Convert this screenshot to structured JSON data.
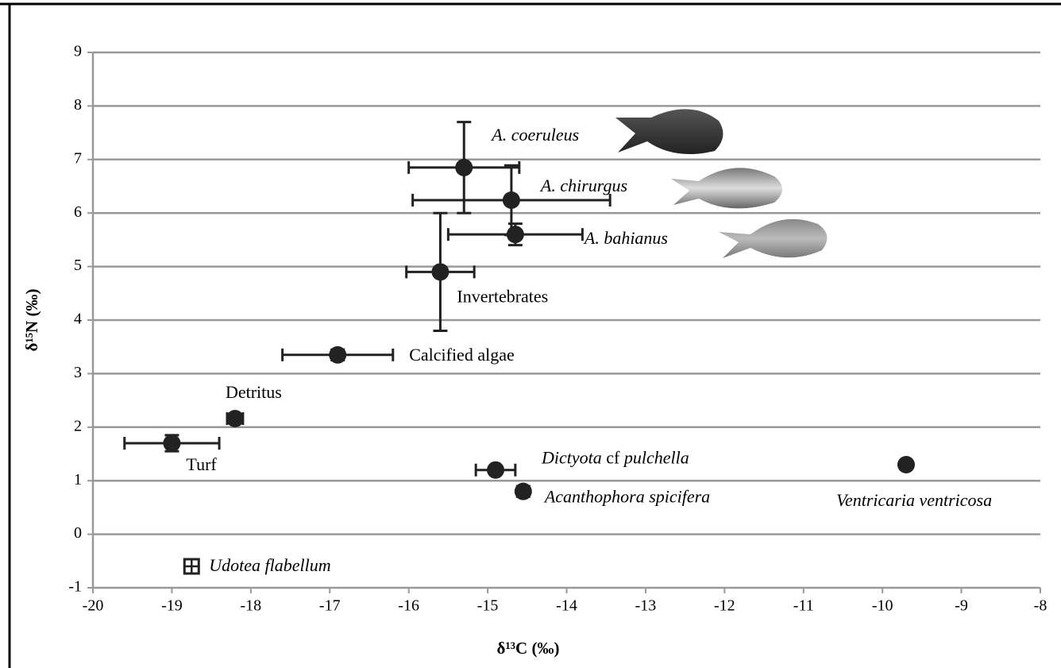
{
  "chart_data": {
    "type": "scatter",
    "x_label": "δ¹³C (‰)",
    "y_label": "δ¹⁵N (‰)",
    "xlim": [
      -20,
      -8
    ],
    "xticks": [
      -20,
      -19,
      -18,
      -17,
      -16,
      -15,
      -14,
      -13,
      -12,
      -11,
      -10,
      -9,
      -8
    ],
    "ylim": [
      -1,
      9
    ],
    "yticks": [
      -1,
      0,
      1,
      2,
      3,
      4,
      5,
      6,
      7,
      8,
      9
    ],
    "grid": true,
    "color": "#222222",
    "grid_color": "#999999",
    "points": [
      {
        "label": [
          {
            "text": "A. coeruleus",
            "italic": true
          }
        ],
        "x": -15.3,
        "y": 6.85,
        "xerr": 0.7,
        "yerr": 0.85
      },
      {
        "label": [
          {
            "text": "A. chirurgus",
            "italic": true
          }
        ],
        "x": -14.7,
        "y": 6.24,
        "xerr": 1.25,
        "yerr": 0.65
      },
      {
        "label": [
          {
            "text": "A. bahianus",
            "italic": true
          }
        ],
        "x": -14.65,
        "y": 5.6,
        "xerr": 0.85,
        "yerr": 0.2
      },
      {
        "label": [
          {
            "text": "Invertebrates",
            "italic": false
          }
        ],
        "x": -15.6,
        "y": 4.9,
        "xerr": 0.43,
        "yerr": 1.1
      },
      {
        "label": [
          {
            "text": "Calcified algae",
            "italic": false
          }
        ],
        "x": -16.9,
        "y": 3.35,
        "xerr": 0.7,
        "yerr": 0.1
      },
      {
        "label": [
          {
            "text": "Detritus",
            "italic": false
          }
        ],
        "x": -18.2,
        "y": 2.16,
        "xerr": 0.1,
        "yerr": 0.05
      },
      {
        "label": [
          {
            "text": "Turf",
            "italic": false
          }
        ],
        "x": -19.0,
        "y": 1.7,
        "xerr": 0.6,
        "yerr": 0.15
      },
      {
        "label": [
          {
            "text": "Dictyota",
            "italic": true
          },
          {
            "text": " cf ",
            "italic": false
          },
          {
            "text": "pulchella",
            "italic": true
          }
        ],
        "x": -14.9,
        "y": 1.2,
        "xerr": 0.25,
        "yerr": 0.05
      },
      {
        "label": [
          {
            "text": "Acanthophora spicifera",
            "italic": true
          }
        ],
        "x": -14.55,
        "y": 0.8,
        "xerr": 0.05,
        "yerr": 0.1
      },
      {
        "label": [
          {
            "text": "Ventricaria ventricosa",
            "italic": true
          }
        ],
        "x": -9.7,
        "y": 1.3
      },
      {
        "label": [
          {
            "text": "Udotea flabellum",
            "italic": true
          }
        ],
        "x": -18.75,
        "y": -0.6,
        "marker": "square-cross"
      }
    ]
  }
}
